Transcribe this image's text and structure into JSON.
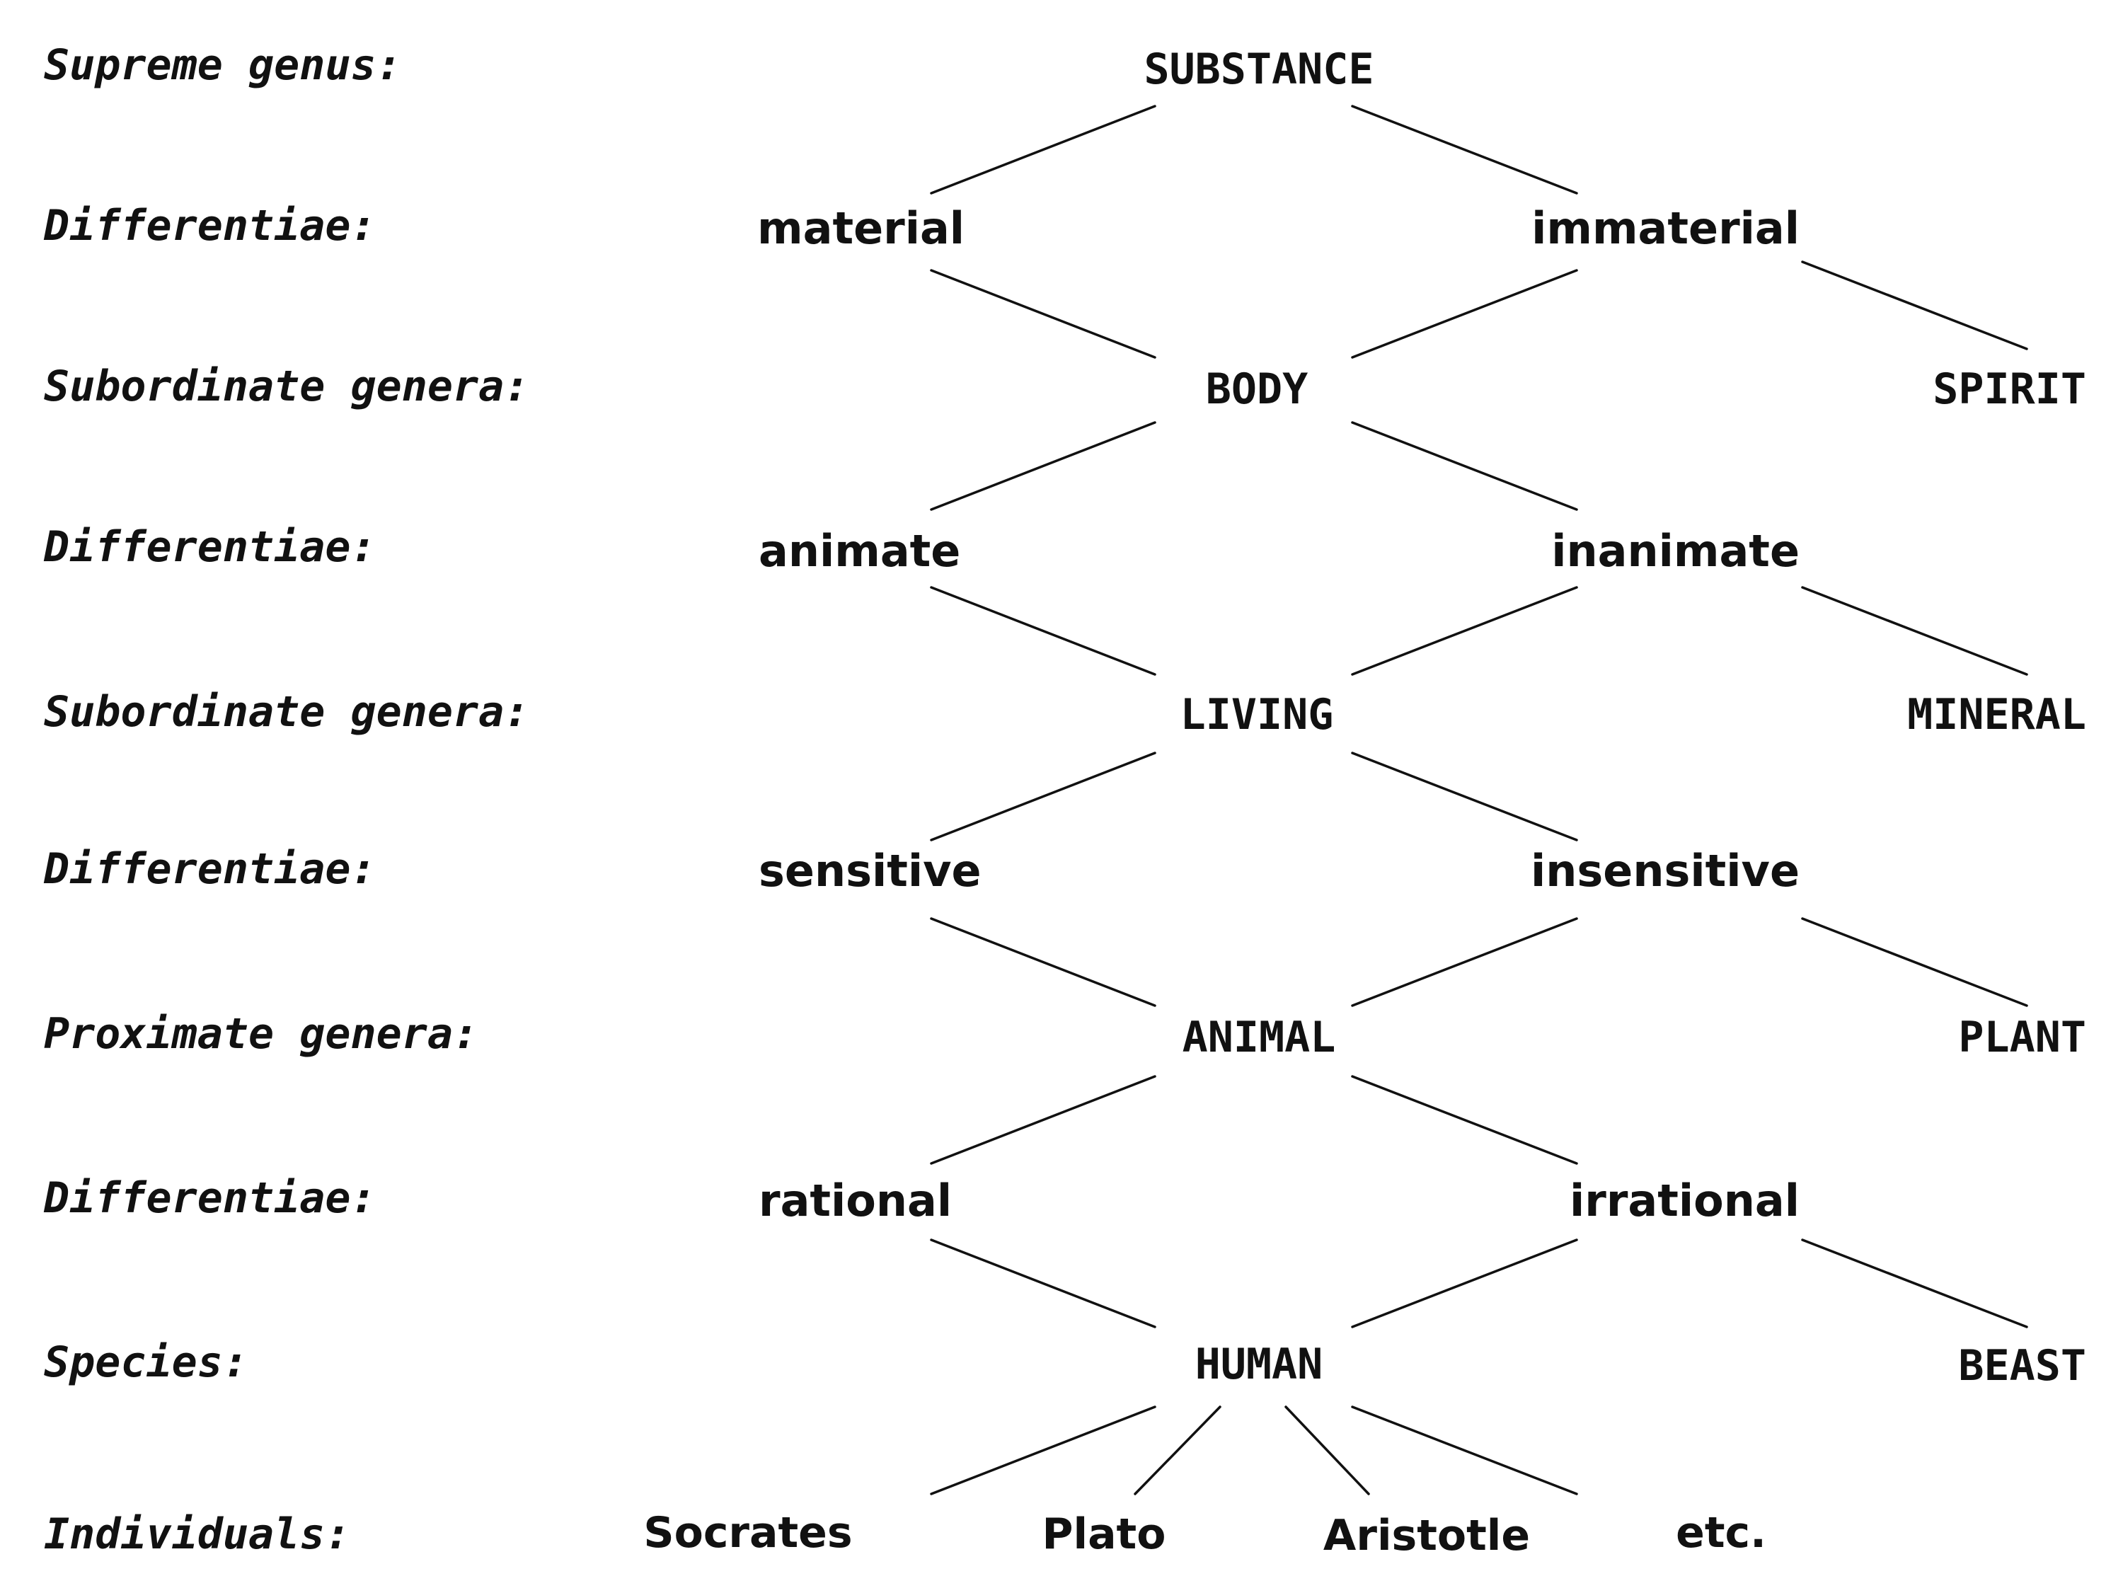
{
  "row_labels": {
    "supreme_genus": "Supreme genus:",
    "differentiae_1": "Differentiae:",
    "subordinate_genera_1": "Subordinate genera:",
    "differentiae_2": "Differentiae:",
    "subordinate_genera_2": "Subordinate genera:",
    "differentiae_3": "Differentiae:",
    "proximate_genera": "Proximate genera:",
    "differentiae_4": "Differentiae:",
    "species": "Species:",
    "individuals": "Individuals:"
  },
  "nodes": {
    "substance": "SUBSTANCE",
    "material": "material",
    "immaterial": "immaterial",
    "body": "BODY",
    "spirit": "SPIRIT",
    "animate": "animate",
    "inanimate": "inanimate",
    "living": "LIVING",
    "mineral": "MINERAL",
    "sensitive": "sensitive",
    "insensitive": "insensitive",
    "animal": "ANIMAL",
    "plant": "PLANT",
    "rational": "rational",
    "irrational": "irrational",
    "human": "HUMAN",
    "beast": "BEAST",
    "socrates": "Socrates",
    "plato": "Plato",
    "aristotle": "Aristotle",
    "etc": "etc."
  },
  "edges": [
    [
      "substance",
      "material"
    ],
    [
      "substance",
      "immaterial"
    ],
    [
      "material",
      "body"
    ],
    [
      "immaterial",
      "body"
    ],
    [
      "immaterial",
      "spirit"
    ],
    [
      "body",
      "animate"
    ],
    [
      "body",
      "inanimate"
    ],
    [
      "animate",
      "living"
    ],
    [
      "inanimate",
      "living"
    ],
    [
      "inanimate",
      "mineral"
    ],
    [
      "living",
      "sensitive"
    ],
    [
      "living",
      "insensitive"
    ],
    [
      "sensitive",
      "animal"
    ],
    [
      "insensitive",
      "animal"
    ],
    [
      "insensitive",
      "plant"
    ],
    [
      "animal",
      "rational"
    ],
    [
      "animal",
      "irrational"
    ],
    [
      "rational",
      "human"
    ],
    [
      "irrational",
      "human"
    ],
    [
      "irrational",
      "beast"
    ],
    [
      "human",
      "socrates"
    ],
    [
      "human",
      "plato"
    ],
    [
      "human",
      "aristotle"
    ],
    [
      "human",
      "etc"
    ]
  ]
}
